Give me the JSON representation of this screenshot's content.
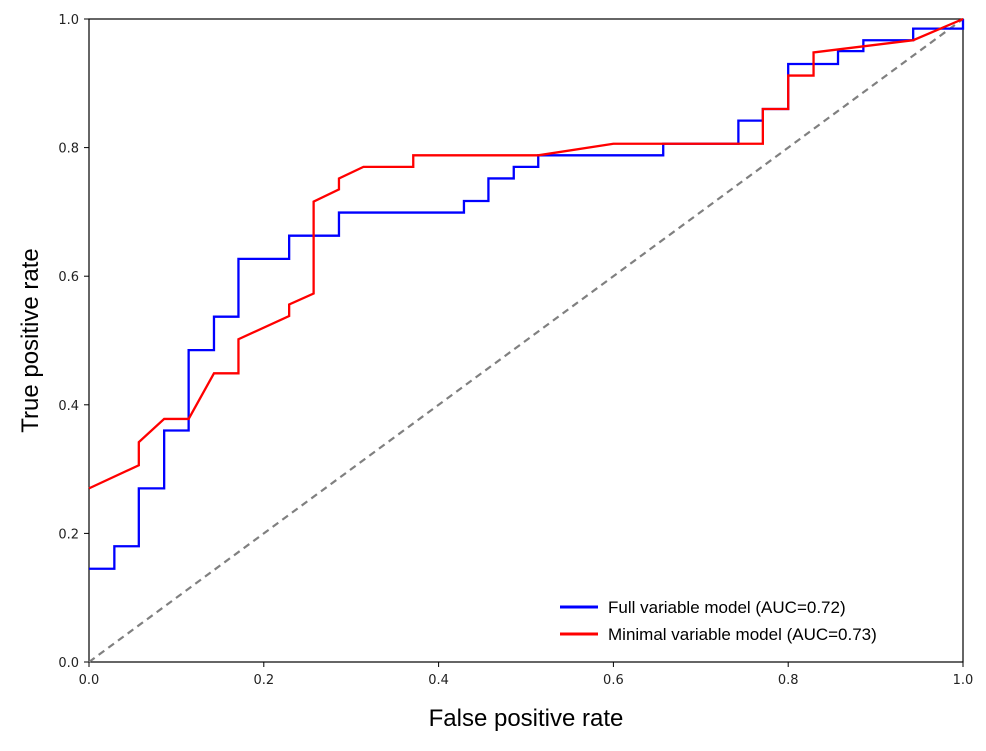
{
  "chart_data": {
    "type": "line",
    "title": "",
    "xlabel": "False positive rate",
    "ylabel": "True positive rate",
    "xlim": [
      0.0,
      1.0
    ],
    "ylim": [
      0.0,
      1.0
    ],
    "x_ticks": [
      "0.0",
      "0.2",
      "0.4",
      "0.6",
      "0.8",
      "1.0"
    ],
    "y_ticks": [
      "0.0",
      "0.2",
      "0.4",
      "0.6",
      "0.8",
      "1.0"
    ],
    "grid": false,
    "legend_position": "bottom-right",
    "reference_line": {
      "style": "dashed",
      "color": "#808080",
      "points": [
        [
          0,
          0
        ],
        [
          1,
          1
        ]
      ]
    },
    "series": [
      {
        "name": "Full variable model (AUC=0.72)",
        "color": "#0000ff",
        "step": true,
        "points": [
          [
            0.0,
            0.145
          ],
          [
            0.029,
            0.145
          ],
          [
            0.029,
            0.18
          ],
          [
            0.057,
            0.18
          ],
          [
            0.057,
            0.27
          ],
          [
            0.086,
            0.27
          ],
          [
            0.086,
            0.36
          ],
          [
            0.114,
            0.36
          ],
          [
            0.114,
            0.485
          ],
          [
            0.143,
            0.485
          ],
          [
            0.143,
            0.537
          ],
          [
            0.171,
            0.537
          ],
          [
            0.171,
            0.627
          ],
          [
            0.229,
            0.627
          ],
          [
            0.229,
            0.663
          ],
          [
            0.286,
            0.663
          ],
          [
            0.286,
            0.699
          ],
          [
            0.429,
            0.699
          ],
          [
            0.429,
            0.717
          ],
          [
            0.457,
            0.717
          ],
          [
            0.457,
            0.752
          ],
          [
            0.486,
            0.752
          ],
          [
            0.486,
            0.77
          ],
          [
            0.514,
            0.77
          ],
          [
            0.514,
            0.788
          ],
          [
            0.657,
            0.788
          ],
          [
            0.657,
            0.806
          ],
          [
            0.743,
            0.806
          ],
          [
            0.743,
            0.842
          ],
          [
            0.771,
            0.842
          ],
          [
            0.771,
            0.86
          ],
          [
            0.8,
            0.86
          ],
          [
            0.8,
            0.93
          ],
          [
            0.857,
            0.93
          ],
          [
            0.857,
            0.95
          ],
          [
            0.886,
            0.95
          ],
          [
            0.886,
            0.967
          ],
          [
            0.943,
            0.967
          ],
          [
            0.943,
            0.985
          ],
          [
            1.0,
            0.985
          ],
          [
            1.0,
            1.0
          ]
        ]
      },
      {
        "name": "Minimal variable model (AUC=0.73)",
        "color": "#ff0000",
        "step": false,
        "points": [
          [
            0.0,
            0.27
          ],
          [
            0.057,
            0.306
          ],
          [
            0.057,
            0.342
          ],
          [
            0.086,
            0.378
          ],
          [
            0.114,
            0.378
          ],
          [
            0.143,
            0.449
          ],
          [
            0.171,
            0.449
          ],
          [
            0.171,
            0.502
          ],
          [
            0.229,
            0.538
          ],
          [
            0.229,
            0.556
          ],
          [
            0.257,
            0.573
          ],
          [
            0.257,
            0.716
          ],
          [
            0.286,
            0.735
          ],
          [
            0.286,
            0.752
          ],
          [
            0.314,
            0.77
          ],
          [
            0.371,
            0.77
          ],
          [
            0.371,
            0.788
          ],
          [
            0.514,
            0.788
          ],
          [
            0.6,
            0.806
          ],
          [
            0.771,
            0.806
          ],
          [
            0.771,
            0.86
          ],
          [
            0.8,
            0.86
          ],
          [
            0.8,
            0.912
          ],
          [
            0.829,
            0.912
          ],
          [
            0.829,
            0.948
          ],
          [
            0.943,
            0.967
          ],
          [
            1.0,
            1.0
          ]
        ]
      }
    ]
  }
}
